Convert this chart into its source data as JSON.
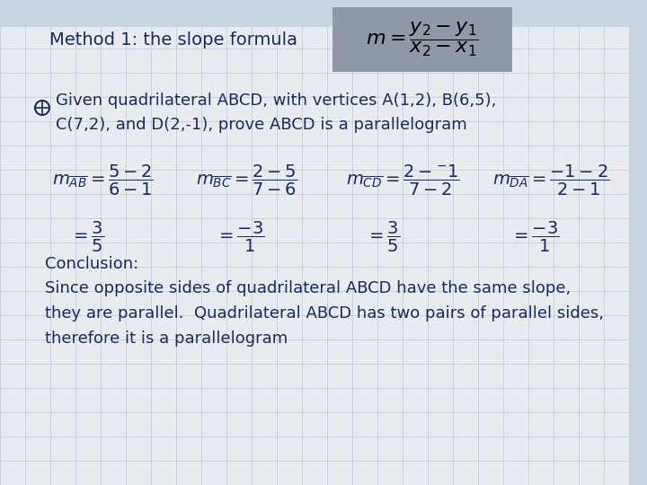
{
  "background_color": "#e8ecf0",
  "header_strip_color": "#c8d4e0",
  "title_text": "Method 1: the slope formula",
  "formula_box_color": "#9099a8",
  "text_color": "#1a2a5a",
  "grid_color": "#c4ccd8",
  "font_size_title": 13,
  "font_size_body": 13,
  "font_size_math": 13,
  "font_size_conclusion": 13,
  "given_line1": "Given quadrilateral ABCD, with vertices A(1,2), B(6,5),",
  "given_line2": "C(7,2), and D(2,-1), prove ABCD is a parallelogram",
  "conclusion_line1": "Conclusion:",
  "conclusion_line2": "Since opposite sides of quadrilateral ABCD have the same slope,",
  "conclusion_line3": "they are parallel.  Quadrilateral ABCD has two pairs of parallel sides,",
  "conclusion_line4": "therefore it is a parallelogram"
}
